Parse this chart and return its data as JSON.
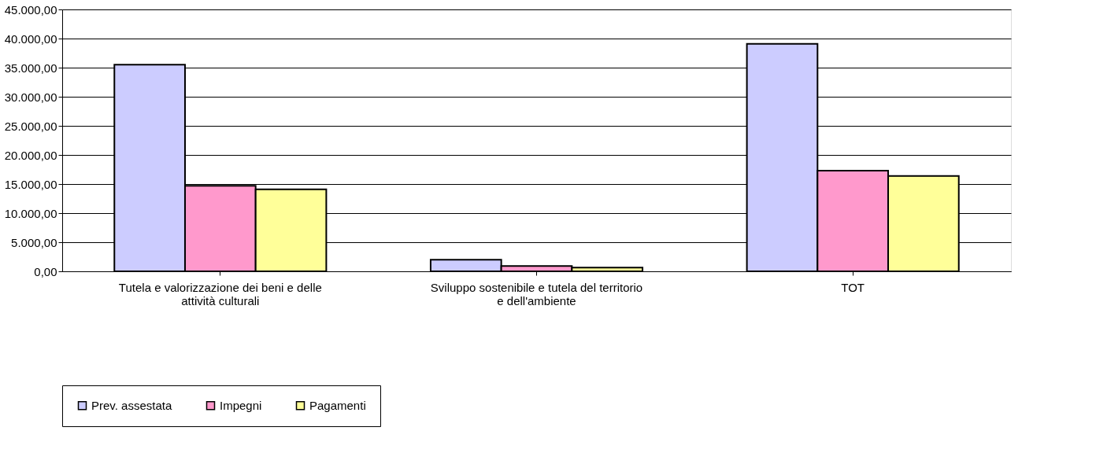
{
  "chart_data": {
    "type": "bar",
    "categories": [
      "Tutela e valorizzazione dei beni e delle attività culturali",
      "Sviluppo sostenibile e tutela del territorio e dell'ambiente",
      "TOT"
    ],
    "series": [
      {
        "name": "Prev. assestata",
        "color": "#ccccff",
        "values": [
          35500,
          2000,
          39100
        ]
      },
      {
        "name": "Impegni",
        "color": "#ff99cc",
        "values": [
          14700,
          900,
          17300
        ]
      },
      {
        "name": "Pagamenti",
        "color": "#ffff99",
        "values": [
          14100,
          650,
          16400
        ]
      }
    ],
    "ylim": [
      0,
      45000
    ],
    "yticks": [
      {
        "value": 0,
        "label": "0,00"
      },
      {
        "value": 5000,
        "label": "5.000,00"
      },
      {
        "value": 10000,
        "label": "10.000,00"
      },
      {
        "value": 15000,
        "label": "15.000,00"
      },
      {
        "value": 20000,
        "label": "20.000,00"
      },
      {
        "value": 25000,
        "label": "25.000,00"
      },
      {
        "value": 30000,
        "label": "30.000,00"
      },
      {
        "value": 35000,
        "label": "35.000,00"
      },
      {
        "value": 40000,
        "label": "40.000,00"
      },
      {
        "value": 45000,
        "label": "45.000,00"
      }
    ],
    "grid": "y",
    "legend": "bottom left"
  }
}
